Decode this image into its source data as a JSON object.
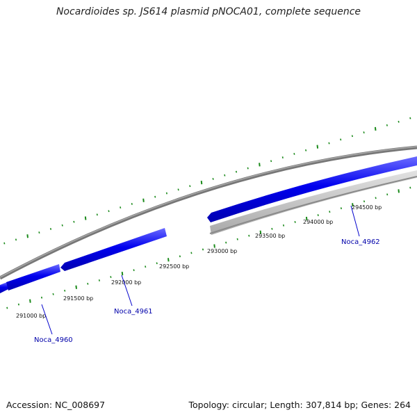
{
  "title": "Nocardioides sp. JS614 plasmid pNOCA01, complete sequence",
  "footer": {
    "accession": "Accession: NC_008697",
    "summary": "Topology: circular; Length: 307,814 bp; Genes: 264"
  },
  "colors": {
    "backbone": "#808080",
    "forward_gene": "#0000ee",
    "reverse_gene": "#bdbdbd",
    "tick": "#1a8a1a",
    "gene_label": "#0000aa",
    "leader_line": "#0000cc"
  },
  "scale_labels": [
    "291000 bp",
    "291500 bp",
    "292000 bp",
    "292500 bp",
    "293000 bp",
    "293500 bp",
    "294000 bp",
    "294500 bp"
  ],
  "gene_labels": [
    "Noca_4960",
    "Noca_4961",
    "Noca_4962"
  ],
  "features": [
    {
      "strand": "forward",
      "label": "Noca_4960"
    },
    {
      "strand": "forward",
      "label": "Noca_4961"
    },
    {
      "strand": "forward",
      "label": "Noca_4962"
    },
    {
      "strand": "reverse",
      "label": ""
    }
  ]
}
